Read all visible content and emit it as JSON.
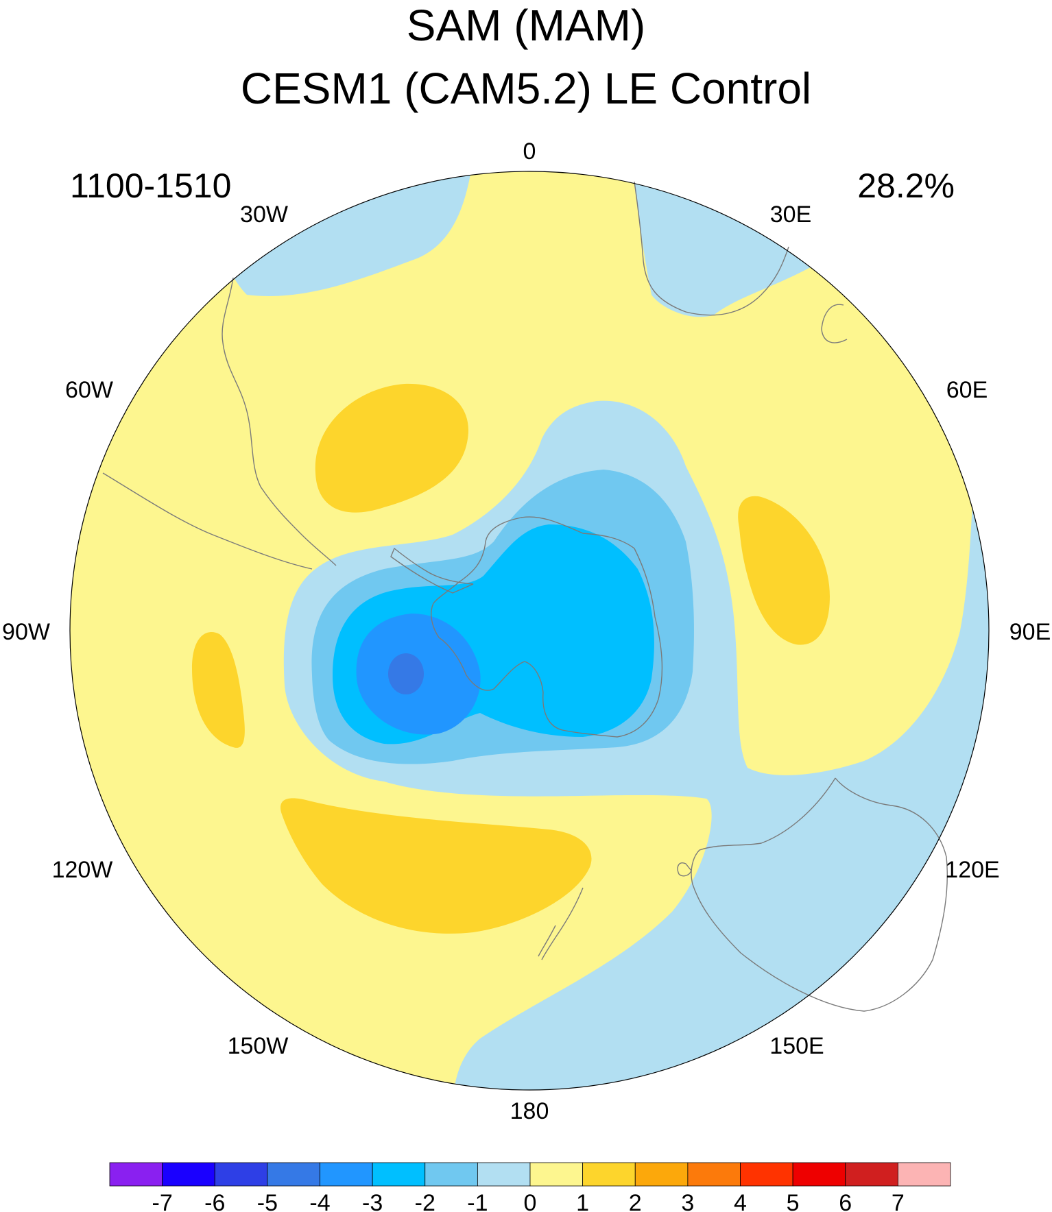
{
  "title": "SAM (MAM)",
  "subtitle": "CESM1 (CAM5.2) LE Control",
  "period": "1100-1510",
  "variance_explained": "28.2%",
  "longitude_labels": [
    "0",
    "30E",
    "60E",
    "90E",
    "120E",
    "150E",
    "180",
    "150W",
    "120W",
    "90W",
    "60W",
    "30W"
  ],
  "colorbar": {
    "colors": [
      "#8a20f0",
      "#1a00ff",
      "#2e3fe6",
      "#3579e6",
      "#2196ff",
      "#00bfff",
      "#70c8f0",
      "#b2dff2",
      "#fdf68f",
      "#fdd52c",
      "#fca80b",
      "#fc7a0b",
      "#ff3300",
      "#ee0000",
      "#d01f1f",
      "#fcb4b4"
    ],
    "labels": [
      "-7",
      "-6",
      "-5",
      "-4",
      "-3",
      "-2",
      "-1",
      "0",
      "1",
      "2",
      "3",
      "4",
      "5",
      "6",
      "7"
    ]
  },
  "colors": {
    "neg1": "#b2dff2",
    "neg2": "#70c8f0",
    "neg3": "#00bfff",
    "neg4": "#2196ff",
    "neg5": "#3579e6",
    "pos1": "#fdf68f",
    "pos2": "#fdd52c",
    "coast": "#7a7a7a"
  }
}
